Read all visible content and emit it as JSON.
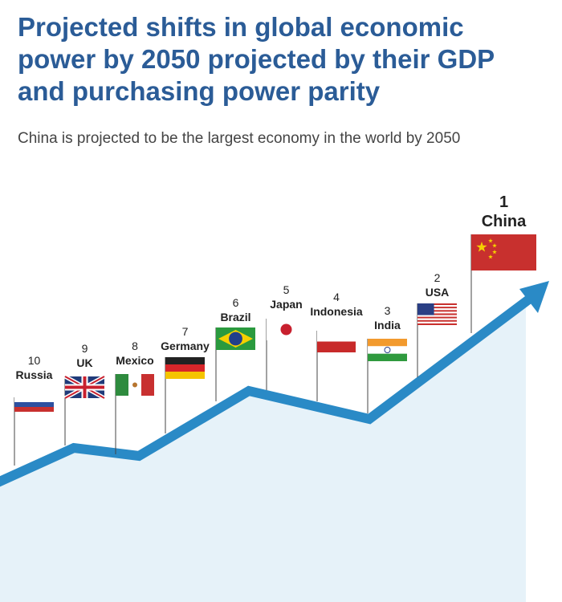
{
  "title": "Projected shifts in global economic power by 2050 projected by their GDP and purchasing power parity",
  "subtitle": "China is projected to be the largest economy in the world by 2050",
  "countries": [
    {
      "rank": "10",
      "name": "Russia"
    },
    {
      "rank": "9",
      "name": "UK"
    },
    {
      "rank": "8",
      "name": "Mexico"
    },
    {
      "rank": "7",
      "name": "Germany"
    },
    {
      "rank": "6",
      "name": "Brazil"
    },
    {
      "rank": "5",
      "name": "Japan"
    },
    {
      "rank": "4",
      "name": "Indonesia"
    },
    {
      "rank": "3",
      "name": "India"
    },
    {
      "rank": "2",
      "name": "USA"
    },
    {
      "rank": "1",
      "name": "China"
    }
  ]
}
